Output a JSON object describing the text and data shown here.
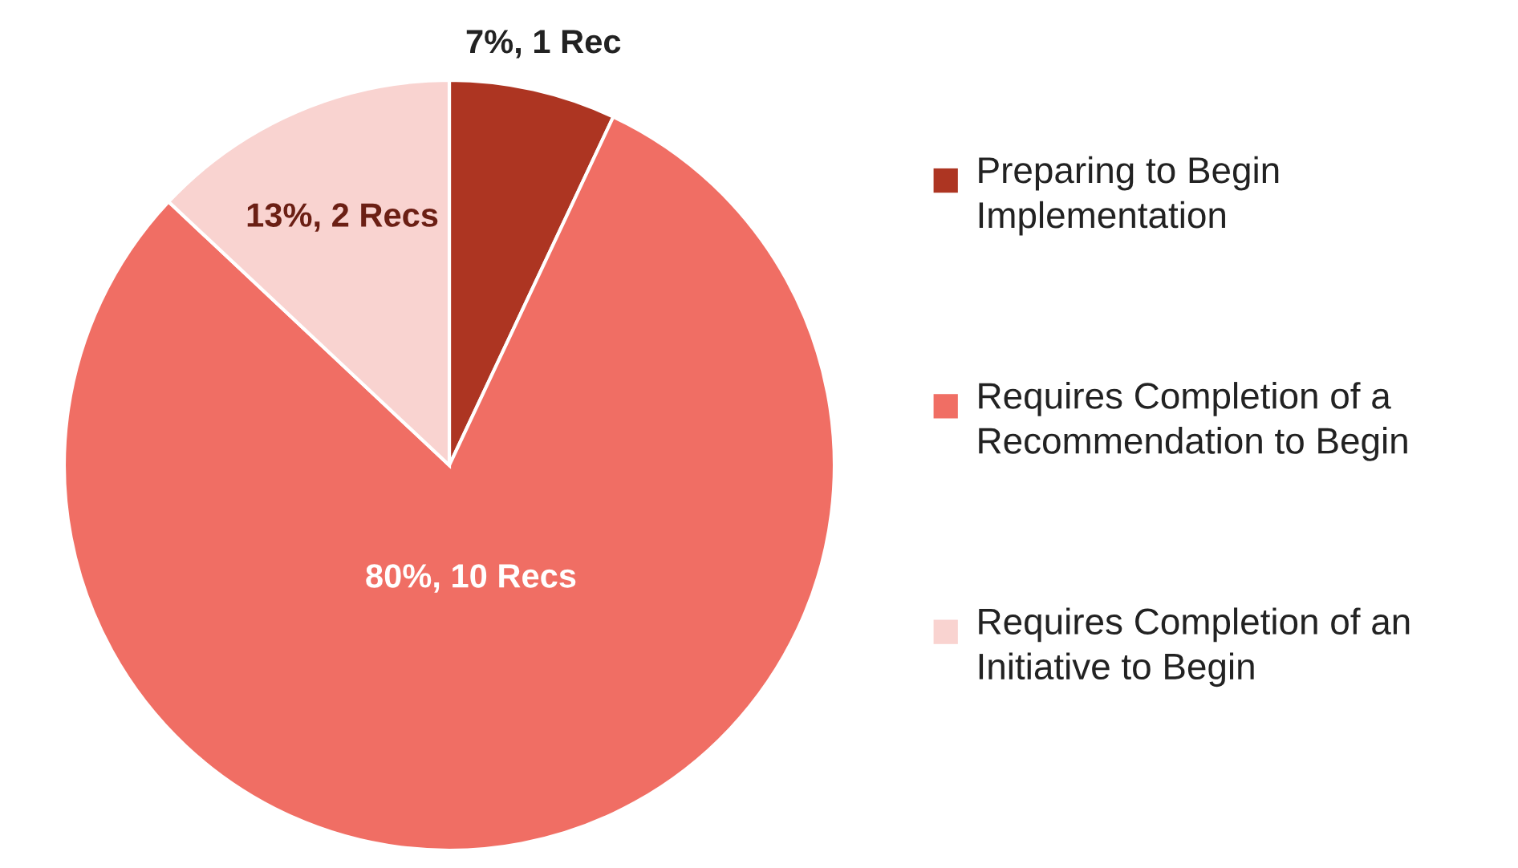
{
  "chart_data": {
    "type": "pie",
    "categories": [
      "Preparing to Begin Implementation",
      "Requires Completion of a Recommendation to Begin",
      "Requires Completion of an Initiative to Begin"
    ],
    "values": [
      7,
      80,
      13
    ],
    "value_labels": [
      "7%, 1 Rec",
      "80%, 10 Recs",
      "13%, 2 Recs"
    ],
    "colors": [
      "#ad3522",
      "#f06e64",
      "#f9d3d0"
    ],
    "legend": "right"
  }
}
